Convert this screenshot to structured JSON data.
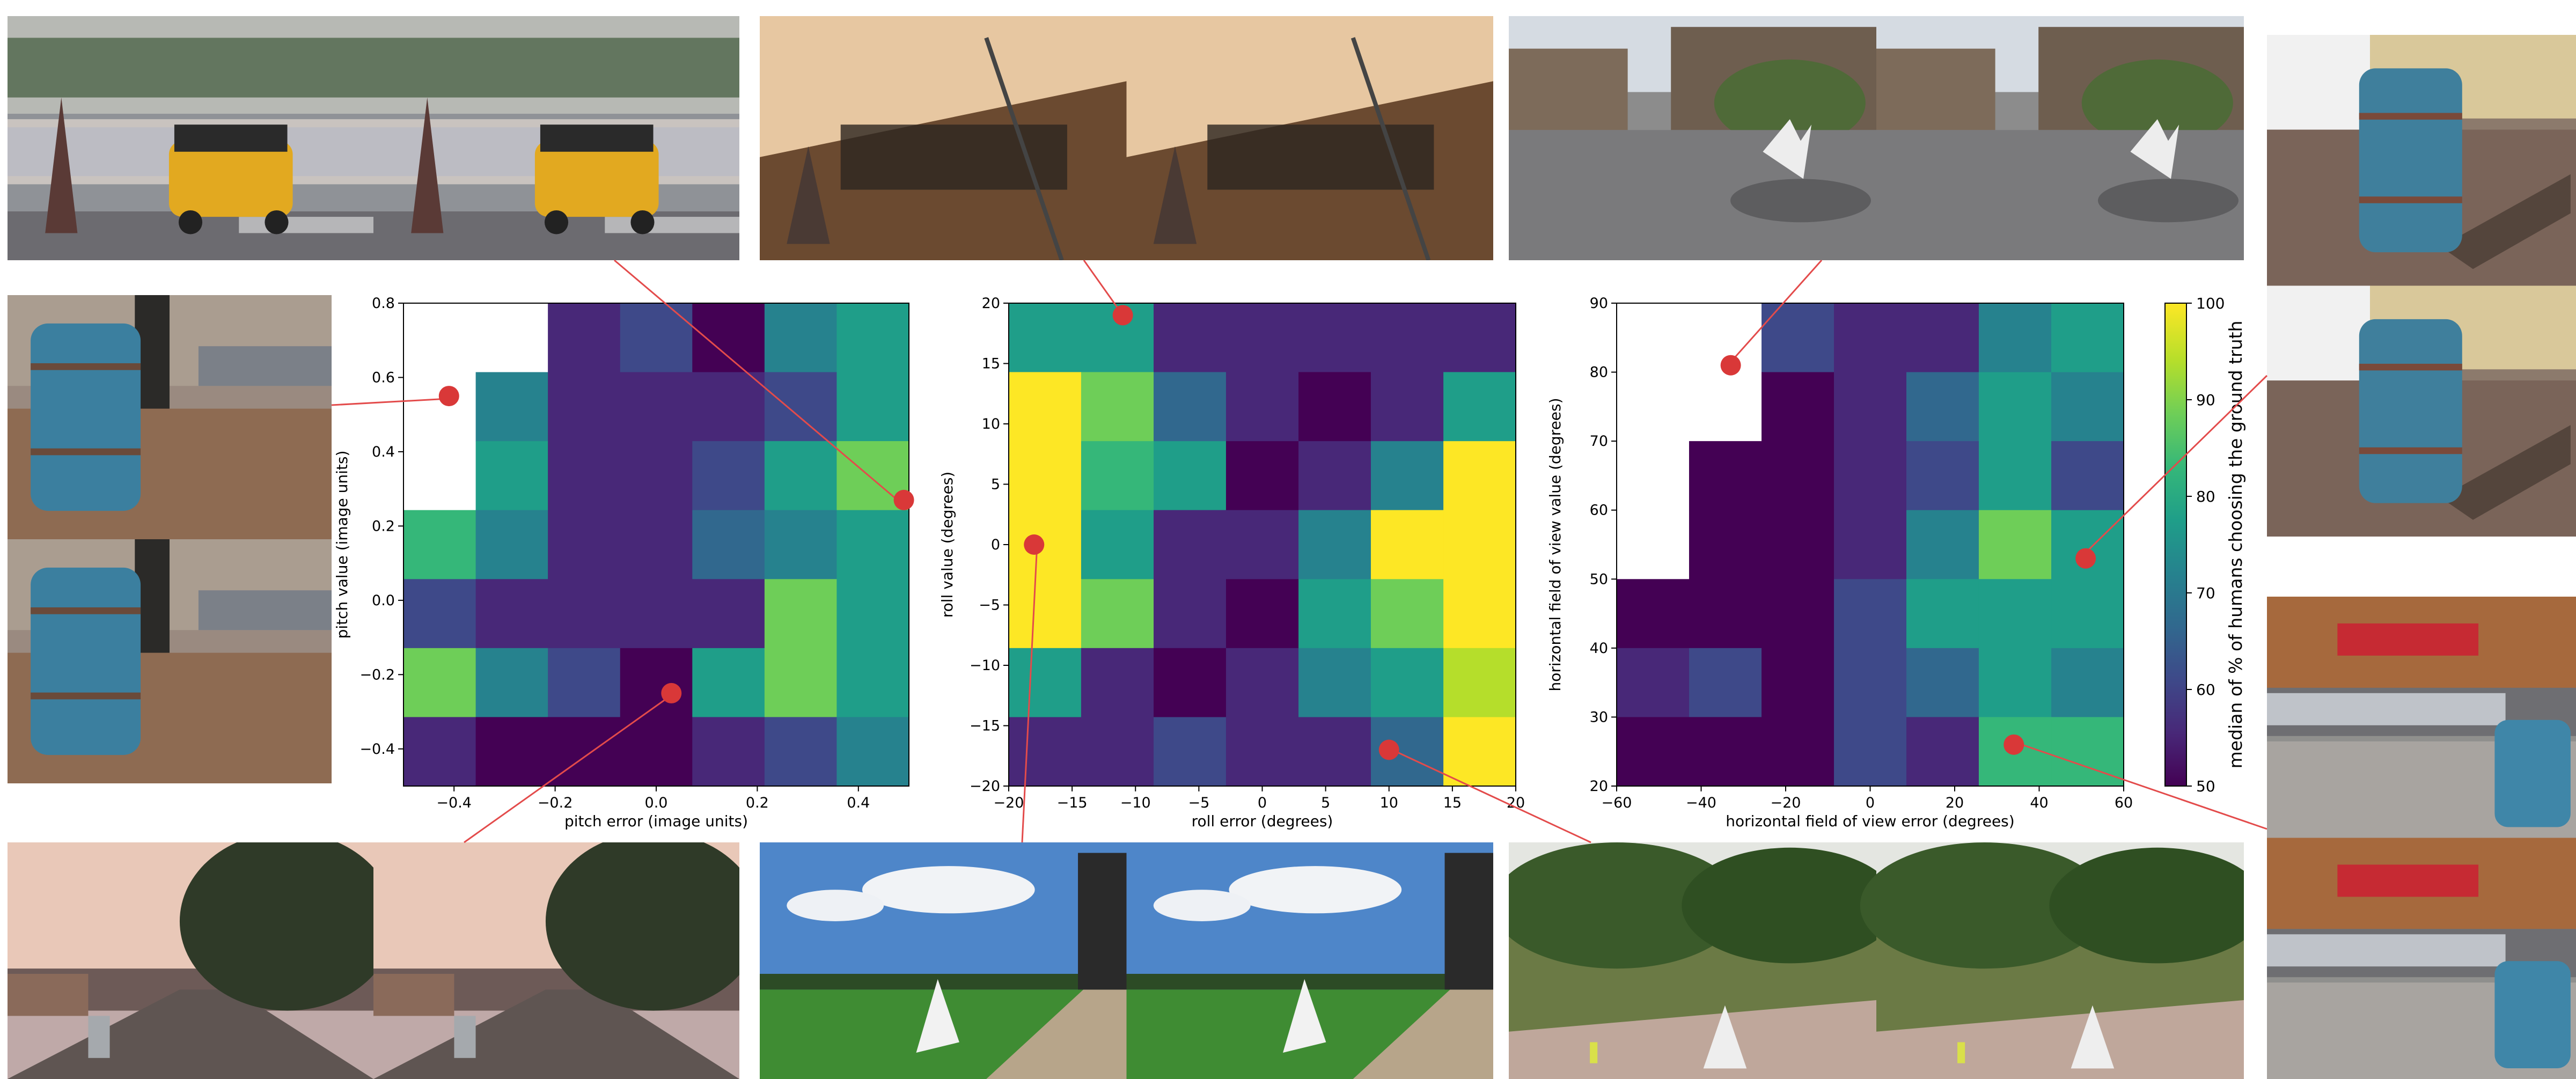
{
  "colorbar": {
    "label": "median of % of humans choosing the ground truth",
    "ticks": [
      50,
      60,
      70,
      80,
      90,
      100
    ],
    "range": [
      50,
      100
    ]
  },
  "colormap": [
    "#440154",
    "#482878",
    "#3e4989",
    "#31688e",
    "#26828e",
    "#1f9e89",
    "#35b779",
    "#6ece58",
    "#b5de2b",
    "#fde725"
  ],
  "chart_data": [
    {
      "type": "heatmap",
      "xlabel": "pitch error (image units)",
      "ylabel": "pitch value (image units)",
      "x_range": [
        -0.5,
        0.5
      ],
      "y_range": [
        -0.5,
        0.8
      ],
      "x_ticks": [
        -0.4,
        -0.2,
        0.0,
        0.2,
        0.4
      ],
      "x_tick_labels": [
        "−0.4",
        "−0.2",
        "0.0",
        "0.2",
        "0.4"
      ],
      "y_ticks": [
        -0.4,
        -0.2,
        0.0,
        0.2,
        0.4,
        0.6,
        0.8
      ],
      "y_tick_labels": [
        "−0.4",
        "−0.2",
        "0.0",
        "0.2",
        "0.4",
        "0.6",
        "0.8"
      ],
      "x_edges": [
        -0.5,
        -0.3571,
        -0.2143,
        -0.0714,
        0.0714,
        0.2143,
        0.3571,
        0.5
      ],
      "y_edges": [
        -0.5,
        -0.3143,
        -0.1286,
        0.0571,
        0.2429,
        0.4286,
        0.6143,
        0.8
      ],
      "values": [
        [
          null,
          null,
          55,
          62,
          52,
          74,
          80
        ],
        [
          null,
          72,
          55,
          54,
          57,
          63,
          79
        ],
        [
          null,
          79,
          56,
          57,
          63,
          79,
          88
        ],
        [
          84,
          73,
          56,
          57,
          64,
          71,
          79
        ],
        [
          62,
          56,
          53,
          55,
          56,
          88,
          80
        ],
        [
          88,
          70,
          59,
          52,
          76,
          88,
          79
        ],
        [
          57,
          52,
          52,
          52,
          55,
          63,
          72
        ]
      ],
      "markers": [
        {
          "x": -0.41,
          "y": 0.55
        },
        {
          "x": 0.49,
          "y": 0.27
        },
        {
          "x": 0.03,
          "y": -0.25
        }
      ]
    },
    {
      "type": "heatmap",
      "xlabel": "roll error (degrees)",
      "ylabel": "roll value (degrees)",
      "x_range": [
        -20,
        20
      ],
      "y_range": [
        -20,
        20
      ],
      "x_ticks": [
        -20,
        -15,
        -10,
        -5,
        0,
        5,
        10,
        15,
        20
      ],
      "x_tick_labels": [
        "−20",
        "−15",
        "−10",
        "−5",
        "0",
        "5",
        "10",
        "15",
        "20"
      ],
      "y_ticks": [
        -20,
        -15,
        -10,
        -5,
        0,
        5,
        10,
        15,
        20
      ],
      "y_tick_labels": [
        "−20",
        "−15",
        "−10",
        "−5",
        "0",
        "5",
        "10",
        "15",
        "20"
      ],
      "x_edges": [
        -20,
        -14.29,
        -8.57,
        -2.86,
        2.86,
        8.57,
        14.29,
        20
      ],
      "y_edges": [
        -20,
        -14.29,
        -8.57,
        -2.86,
        2.86,
        8.57,
        14.29,
        20
      ],
      "values": [
        [
          79,
          79,
          54,
          55,
          55,
          54,
          55
        ],
        [
          100,
          88,
          68,
          54,
          52,
          53,
          78
        ],
        [
          100,
          81,
          80,
          52,
          55,
          73,
          100
        ],
        [
          100,
          80,
          57,
          54,
          72,
          100,
          100
        ],
        [
          100,
          89,
          56,
          52,
          80,
          88,
          100
        ],
        [
          78,
          53,
          52,
          58,
          70,
          78,
          92
        ],
        [
          54,
          53,
          60,
          54,
          56,
          64,
          100
        ]
      ],
      "markers": [
        {
          "x": -11,
          "y": 19
        },
        {
          "x": -18,
          "y": 0
        },
        {
          "x": 10,
          "y": -17
        }
      ]
    },
    {
      "type": "heatmap",
      "xlabel": "horizontal field of view error (degrees)",
      "ylabel": "horizontal field of view value (degrees)",
      "x_range": [
        -60,
        60
      ],
      "y_range": [
        20,
        90
      ],
      "x_ticks": [
        -60,
        -40,
        -20,
        0,
        20,
        40,
        60
      ],
      "x_tick_labels": [
        "−60",
        "−40",
        "−20",
        "0",
        "20",
        "40",
        "60"
      ],
      "y_ticks": [
        20,
        30,
        40,
        50,
        60,
        70,
        80,
        90
      ],
      "y_tick_labels": [
        "20",
        "30",
        "40",
        "50",
        "60",
        "70",
        "80",
        "90"
      ],
      "x_edges": [
        -60,
        -42.86,
        -25.71,
        -8.57,
        8.57,
        25.71,
        42.86,
        60
      ],
      "y_edges": [
        20,
        30,
        40,
        50,
        60,
        70,
        80,
        90
      ],
      "values": [
        [
          null,
          null,
          60,
          53,
          53,
          70,
          78
        ],
        [
          null,
          null,
          52,
          53,
          64,
          79,
          72
        ],
        [
          null,
          52,
          52,
          53,
          62,
          80,
          62
        ],
        [
          null,
          52,
          52,
          53,
          72,
          88,
          78
        ],
        [
          52,
          52,
          52,
          62,
          76,
          79,
          79
        ],
        [
          55,
          60,
          52,
          60,
          67,
          76,
          70
        ],
        [
          52,
          52,
          52,
          60,
          53,
          85,
          85
        ]
      ],
      "markers": [
        {
          "x": -33,
          "y": 81
        },
        {
          "x": 51,
          "y": 53
        },
        {
          "x": 34,
          "y": 26
        }
      ]
    }
  ]
}
